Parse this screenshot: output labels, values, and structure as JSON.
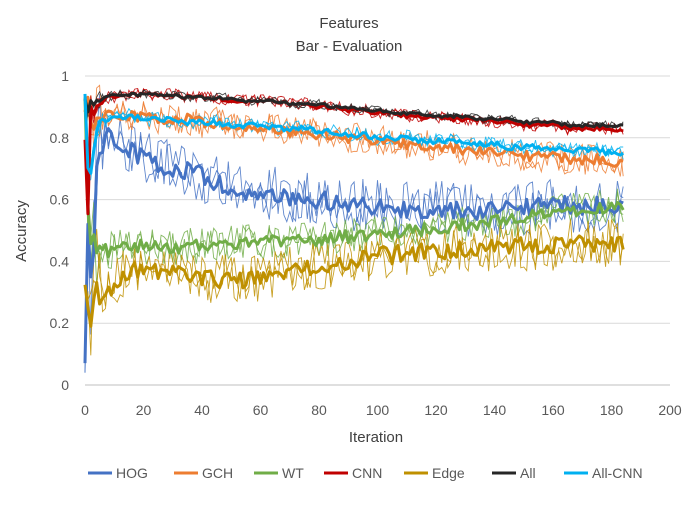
{
  "chart_data": {
    "type": "line",
    "title": "Features",
    "subtitle": "Bar - Evaluation",
    "xlabel": "Iteration",
    "ylabel": "Accuracy",
    "xlim": [
      0,
      200
    ],
    "ylim": [
      0,
      1
    ],
    "x_ticks": [
      0,
      20,
      40,
      60,
      80,
      100,
      120,
      140,
      160,
      180,
      200
    ],
    "y_ticks": [
      0,
      0.2,
      0.4,
      0.6,
      0.8,
      1
    ],
    "y_tick_labels": [
      "0",
      "0.2",
      "0.4",
      "0.6",
      "0.8",
      "1"
    ],
    "grid": "horizontal",
    "legend_position": "bottom",
    "x": [
      0,
      1,
      2,
      3,
      4,
      5,
      6,
      8,
      10,
      12,
      15,
      20,
      25,
      30,
      35,
      40,
      45,
      50,
      55,
      60,
      65,
      70,
      75,
      80,
      85,
      90,
      95,
      100,
      105,
      110,
      115,
      120,
      125,
      130,
      135,
      140,
      145,
      150,
      155,
      160,
      165,
      170,
      175,
      180,
      184
    ],
    "series": [
      {
        "name": "HOG",
        "color": "#4472C4",
        "values": [
          0.1,
          0.5,
          0.35,
          0.45,
          0.7,
          0.76,
          0.78,
          0.8,
          0.78,
          0.78,
          0.76,
          0.74,
          0.71,
          0.7,
          0.69,
          0.68,
          0.66,
          0.64,
          0.63,
          0.62,
          0.62,
          0.61,
          0.6,
          0.6,
          0.59,
          0.59,
          0.58,
          0.58,
          0.57,
          0.57,
          0.57,
          0.57,
          0.57,
          0.56,
          0.56,
          0.57,
          0.57,
          0.57,
          0.58,
          0.58,
          0.58,
          0.58,
          0.58,
          0.58,
          0.58
        ]
      },
      {
        "name": "GCH",
        "color": "#ED7D31",
        "values": [
          0.9,
          0.92,
          0.85,
          0.84,
          0.86,
          0.87,
          0.87,
          0.87,
          0.87,
          0.87,
          0.87,
          0.87,
          0.86,
          0.86,
          0.86,
          0.85,
          0.85,
          0.84,
          0.84,
          0.83,
          0.83,
          0.82,
          0.82,
          0.81,
          0.81,
          0.8,
          0.8,
          0.79,
          0.79,
          0.78,
          0.78,
          0.77,
          0.77,
          0.76,
          0.76,
          0.75,
          0.75,
          0.74,
          0.74,
          0.74,
          0.73,
          0.73,
          0.73,
          0.72,
          0.72
        ]
      },
      {
        "name": "WT",
        "color": "#70AD47",
        "values": [
          0.95,
          0.6,
          0.45,
          0.5,
          0.42,
          0.45,
          0.44,
          0.43,
          0.44,
          0.45,
          0.45,
          0.45,
          0.45,
          0.44,
          0.45,
          0.45,
          0.46,
          0.46,
          0.46,
          0.46,
          0.47,
          0.47,
          0.47,
          0.47,
          0.48,
          0.48,
          0.48,
          0.49,
          0.49,
          0.5,
          0.5,
          0.51,
          0.51,
          0.52,
          0.52,
          0.53,
          0.54,
          0.54,
          0.55,
          0.56,
          0.56,
          0.57,
          0.57,
          0.58,
          0.58
        ]
      },
      {
        "name": "CNN",
        "color": "#C00000",
        "values": [
          0.8,
          0.55,
          0.9,
          0.88,
          0.9,
          0.91,
          0.92,
          0.93,
          0.93,
          0.94,
          0.94,
          0.94,
          0.94,
          0.94,
          0.93,
          0.93,
          0.93,
          0.92,
          0.92,
          0.92,
          0.92,
          0.91,
          0.91,
          0.9,
          0.9,
          0.89,
          0.89,
          0.88,
          0.88,
          0.87,
          0.87,
          0.87,
          0.86,
          0.86,
          0.86,
          0.85,
          0.85,
          0.84,
          0.84,
          0.84,
          0.83,
          0.83,
          0.83,
          0.83,
          0.82
        ]
      },
      {
        "name": "Edge",
        "color": "#BF9000",
        "values": [
          0.35,
          0.25,
          0.2,
          0.3,
          0.33,
          0.28,
          0.27,
          0.3,
          0.33,
          0.35,
          0.37,
          0.38,
          0.37,
          0.36,
          0.36,
          0.35,
          0.34,
          0.35,
          0.34,
          0.34,
          0.36,
          0.37,
          0.38,
          0.39,
          0.39,
          0.4,
          0.41,
          0.42,
          0.42,
          0.43,
          0.43,
          0.43,
          0.44,
          0.44,
          0.44,
          0.45,
          0.45,
          0.45,
          0.45,
          0.45,
          0.46,
          0.46,
          0.46,
          0.46,
          0.46
        ]
      },
      {
        "name": "All",
        "color": "#262626",
        "values": [
          0.93,
          0.88,
          0.92,
          0.91,
          0.92,
          0.92,
          0.93,
          0.93,
          0.94,
          0.94,
          0.94,
          0.94,
          0.94,
          0.94,
          0.93,
          0.93,
          0.93,
          0.93,
          0.92,
          0.92,
          0.92,
          0.91,
          0.91,
          0.91,
          0.9,
          0.9,
          0.89,
          0.89,
          0.88,
          0.88,
          0.88,
          0.87,
          0.87,
          0.87,
          0.86,
          0.86,
          0.86,
          0.85,
          0.85,
          0.85,
          0.84,
          0.84,
          0.84,
          0.84,
          0.84
        ]
      },
      {
        "name": "All-CNN",
        "color": "#00B0F0",
        "values": [
          0.95,
          0.7,
          0.68,
          0.75,
          0.82,
          0.85,
          0.86,
          0.86,
          0.87,
          0.87,
          0.87,
          0.86,
          0.86,
          0.86,
          0.85,
          0.85,
          0.85,
          0.84,
          0.84,
          0.84,
          0.83,
          0.83,
          0.83,
          0.82,
          0.82,
          0.81,
          0.81,
          0.8,
          0.8,
          0.8,
          0.79,
          0.79,
          0.79,
          0.78,
          0.78,
          0.78,
          0.77,
          0.77,
          0.77,
          0.76,
          0.76,
          0.76,
          0.76,
          0.75,
          0.75
        ]
      }
    ]
  }
}
